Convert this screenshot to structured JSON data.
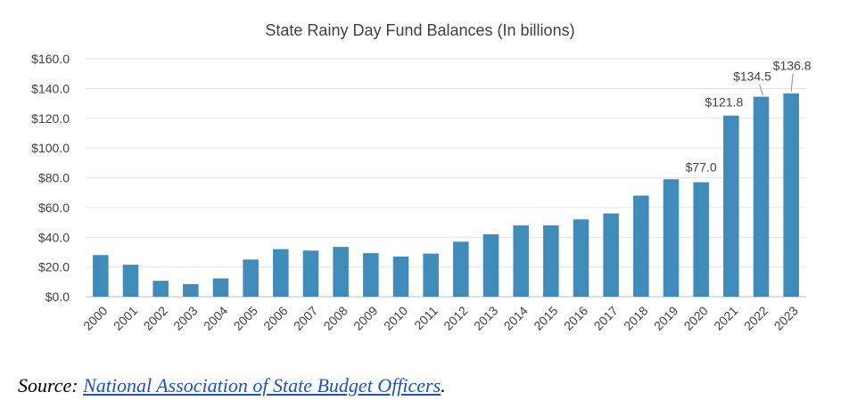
{
  "chart_data": {
    "type": "bar",
    "title": "State Rainy Day Fund Balances (In billions)",
    "xlabel": "",
    "ylabel": "",
    "categories": [
      "2000",
      "2001",
      "2002",
      "2003",
      "2004",
      "2005",
      "2006",
      "2007",
      "2008",
      "2009",
      "2010",
      "2011",
      "2012",
      "2013",
      "2014",
      "2015",
      "2016",
      "2017",
      "2018",
      "2019",
      "2020",
      "2021",
      "2022",
      "2023"
    ],
    "values": [
      28.0,
      21.5,
      10.7,
      8.5,
      12.3,
      25.0,
      32.0,
      31.0,
      33.5,
      29.3,
      27.0,
      29.0,
      37.0,
      42.0,
      48.0,
      48.0,
      52.0,
      56.0,
      68.0,
      79.0,
      77.0,
      121.8,
      134.5,
      136.8
    ],
    "ylim": [
      0,
      160
    ],
    "yticks": [
      "$0.0",
      "$20.0",
      "$40.0",
      "$60.0",
      "$80.0",
      "$100.0",
      "$120.0",
      "$140.0",
      "$160.0"
    ],
    "data_labels": [
      {
        "index": 20,
        "text": "$77.0"
      },
      {
        "index": 21,
        "text": "$121.8"
      },
      {
        "index": 22,
        "text": "$134.5"
      },
      {
        "index": 23,
        "text": "$136.8"
      }
    ],
    "grid": true,
    "legend": "none",
    "bar_color": "#3f8bb9"
  },
  "source": {
    "prefix": "Source: ",
    "link_text": "National Association of State Budget Officers",
    "suffix": "."
  }
}
